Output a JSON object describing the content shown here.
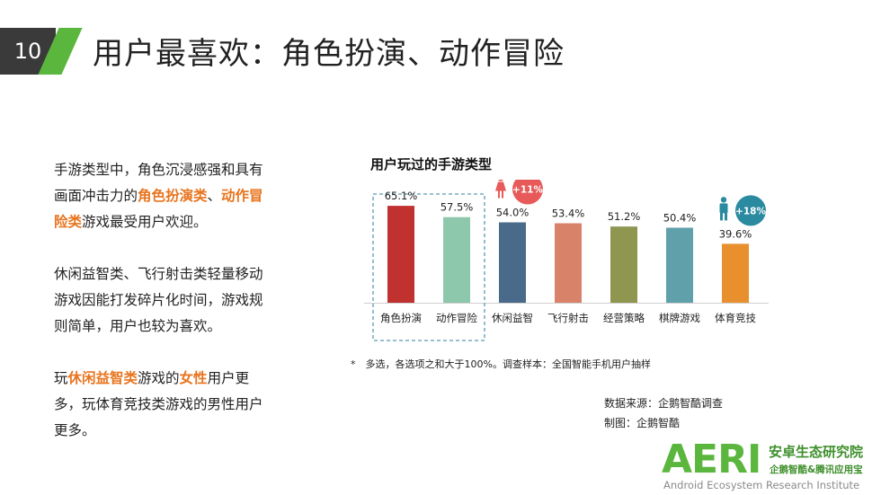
{
  "slide": {
    "number": "10",
    "title": "用户最喜欢：角色扮演、动作冒险"
  },
  "text": {
    "para1": {
      "line1": "手游类型中，角色沉浸感强和具有",
      "line2_a": "画面冲击力的",
      "line2_b": "角色扮演类",
      "line2_c": "、",
      "line2_d": "动作冒",
      "line3_a": "险类",
      "line3_b": "游戏最受用户欢迎。"
    },
    "para2": {
      "line1": "休闲益智类、飞行射击类轻量移动",
      "line2": "游戏因能打发碎片化时间，游戏规",
      "line3": "则简单，用户也较为喜欢。"
    },
    "para3": {
      "line1_a": "玩",
      "line1_b": "休闲益智类",
      "line1_c": "游戏的",
      "line1_d": "女性",
      "line1_e": "用户更",
      "line2": "多，玩体育竞技类游戏的男性用户",
      "line3": "更多。"
    }
  },
  "chart_data": {
    "type": "bar",
    "title": "用户玩过的手游类型",
    "categories": [
      "角色扮演",
      "动作冒险",
      "休闲益智",
      "飞行射击",
      "经营策略",
      "棋牌游戏",
      "体育竞技"
    ],
    "values": [
      65.1,
      57.5,
      54.0,
      53.4,
      51.2,
      50.4,
      39.6
    ],
    "value_labels": [
      "65.1%",
      "57.5%",
      "54.0%",
      "53.4%",
      "51.2%",
      "50.4%",
      "39.6%"
    ],
    "colors": [
      "#c0312f",
      "#8dc7ac",
      "#4a6a8a",
      "#d9826a",
      "#8e9650",
      "#5fa0aa",
      "#e8902e"
    ],
    "ylim": [
      0,
      100
    ],
    "highlight_categories": [
      "角色扮演",
      "动作冒险"
    ],
    "annotations": [
      {
        "category": "休闲益智",
        "text": "+11%",
        "icon": "female-icon",
        "color": "#e85a5a"
      },
      {
        "category": "体育竞技",
        "text": "+18%",
        "icon": "male-icon",
        "color": "#2a8aa0"
      }
    ]
  },
  "footnote": "*　多选，各选项之和大于100%。调查样本：全国智能手机用户抽样",
  "source": {
    "line1": "数据来源：企鹅智酷调查",
    "line2": "制图：企鹅智酷"
  },
  "logo": {
    "mark": "AERI",
    "cn": "安卓生态研究院",
    "cn2": "企鹅智酷&腾讯应用宝",
    "en": "Android Ecosystem Research Institute"
  }
}
